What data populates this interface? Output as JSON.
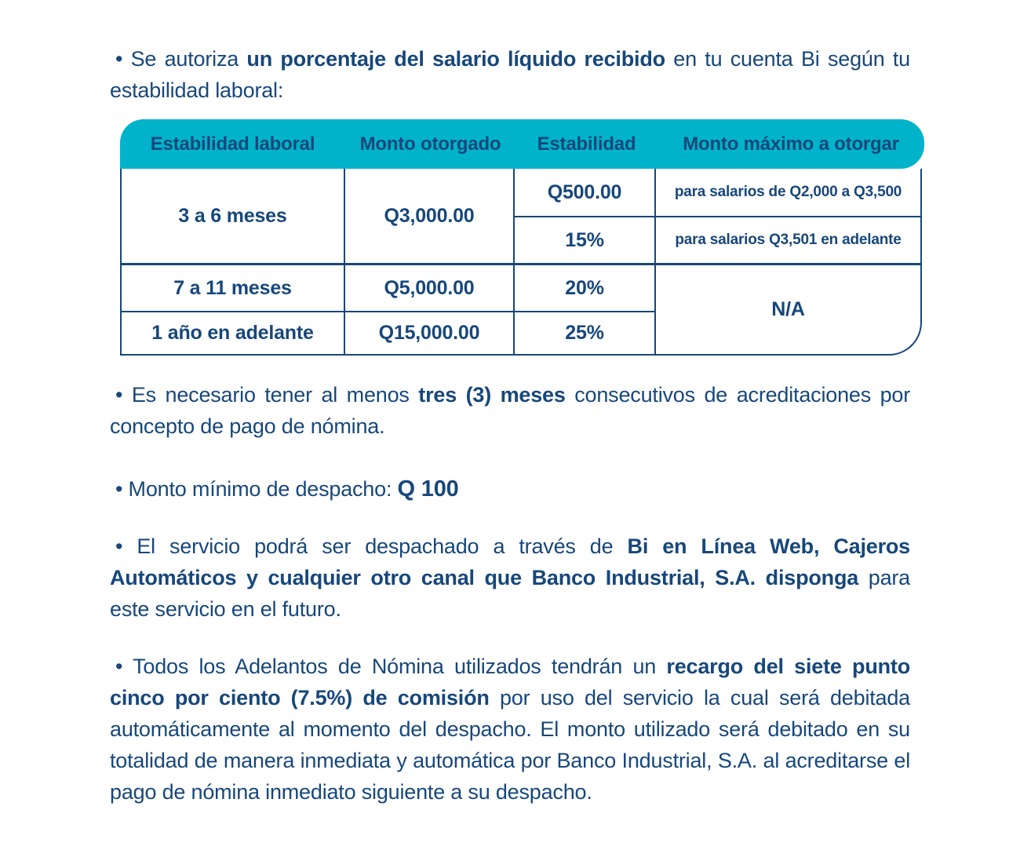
{
  "colors": {
    "navy_text": "#17477B",
    "teal_header": "#00B3CB",
    "page_background": "#FFFFFF"
  },
  "paragraphs": {
    "authorization": {
      "segments": {
        "s0": "• Se autoriza ",
        "s1": "un porcentaje del salario líquido recibido",
        "s2": " en tu cuenta Bi según tu estabilidad laboral:"
      }
    },
    "min_months": {
      "segments": {
        "s0": "• Es necesario tener al menos ",
        "s1": "tres (3) meses",
        "s2": " consecutivos de acreditaciones por concepto de pago de nómina."
      }
    },
    "min_amount": {
      "segments": {
        "s0": "• Monto mínimo de despacho: ",
        "s1": "Q 100"
      }
    },
    "channels": {
      "segments": {
        "s0": "• El servicio podrá ser despachado a través de ",
        "s1": "Bi en Línea Web, Cajeros Automáticos y cualquier otro canal que Banco Industrial, S.A. disponga",
        "s2": " para este servicio en el futuro."
      }
    },
    "commission": {
      "segments": {
        "s0": "• Todos los Adelantos de Nómina utilizados tendrán un ",
        "s1": "recargo del siete punto cinco por ciento (7.5%) de comisión",
        "s2": " por uso del servicio la cual será debitada automáticamente al momento del despacho. El monto utilizado será debitado en su totalidad de manera inmediata y automática por Banco Industrial, S.A. al acreditarse el pago de nómina inmediato siguiente a su despacho."
      }
    }
  },
  "table": {
    "headers": [
      "Estabilidad laboral",
      "Monto otorgado",
      "Estabilidad",
      "Monto máximo a otorgar"
    ],
    "cells": {
      "row1_estabilidad_laboral": "3 a 6 meses",
      "row1_monto_otorgado": "Q3,000.00",
      "row1a_estabilidad": "Q500.00",
      "row1a_monto_maximo": "para salarios de Q2,000 a Q3,500",
      "row1b_estabilidad": "15%",
      "row1b_monto_maximo": "para salarios Q3,501 en adelante",
      "row2_estabilidad_laboral": "7 a 11 meses",
      "row2_monto_otorgado": "Q5,000.00",
      "row2_estabilidad": "20%",
      "row2_3_monto_maximo": "N/A",
      "row3_estabilidad_laboral": "1 año en adelante",
      "row3_monto_otorgado": "Q15,000.00",
      "row3_estabilidad": "25%"
    }
  }
}
